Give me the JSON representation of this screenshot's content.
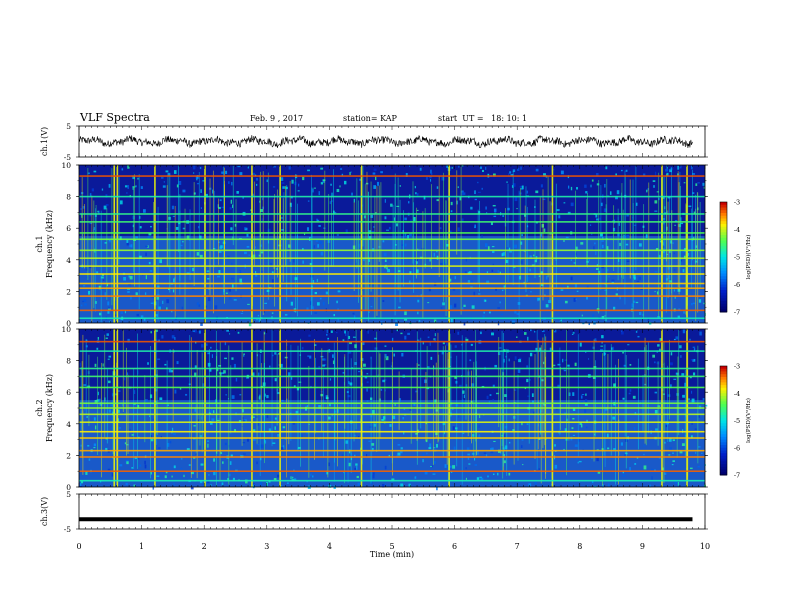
{
  "header": {
    "title": "VLF Spectra",
    "date": "Feb. 9 , 2017",
    "station": "station= KAP",
    "start": "start  UT =   18: 10: 1"
  },
  "chart_data": [
    {
      "type": "line",
      "panel": "ch1_waveform",
      "ylabel": "ch.1(V)",
      "ylim": [
        -5,
        5
      ],
      "yticks": [
        "5",
        "-5"
      ],
      "xlim": [
        0,
        10
      ],
      "color": "#000000",
      "note": "noisy oscillating waveform centered near 0 V, amplitude about ±2 V"
    },
    {
      "type": "heatmap",
      "panel": "ch1_spectrogram",
      "ylabel": "ch.1\nFrequency (kHz)",
      "ylim": [
        0,
        10
      ],
      "yticks": [
        "0",
        "2",
        "4",
        "6",
        "8",
        "10"
      ],
      "xlim": [
        0,
        10
      ],
      "colorbar": {
        "label": "log(PSD)(V²/Hz)",
        "range": [
          -7,
          -3
        ],
        "ticks": [
          "-3",
          "-4",
          "-5",
          "-6",
          "-7"
        ]
      },
      "bands_khz": [
        0.3,
        0.8,
        1.7,
        2.2,
        2.5,
        3.1,
        3.6,
        4.1,
        4.6,
        5.3,
        5.7,
        6.4,
        6.9,
        8.0,
        9.3
      ],
      "vertical_streak_minutes": [
        0.55,
        0.6,
        1.2,
        2.0,
        2.75,
        3.2,
        4.5,
        5.9,
        7.55,
        9.3,
        9.7
      ]
    },
    {
      "type": "heatmap",
      "panel": "ch2_spectrogram",
      "ylabel": "ch.2\nFrequency (kHz)",
      "ylim": [
        0,
        10
      ],
      "yticks": [
        "0",
        "2",
        "4",
        "6",
        "8",
        "10"
      ],
      "xlim": [
        0,
        10
      ],
      "colorbar": {
        "label": "log(PSD)(V²/Hz)",
        "range": [
          -7,
          -3
        ],
        "ticks": [
          "-3",
          "-4",
          "-5",
          "-6",
          "-7"
        ]
      },
      "bands_khz": [
        0.4,
        1.0,
        1.9,
        2.3,
        3.1,
        3.5,
        4.1,
        4.6,
        5.0,
        5.3,
        6.3,
        7.0,
        7.5,
        8.6,
        9.2
      ],
      "vertical_streak_minutes": [
        0.55,
        0.6,
        1.2,
        2.0,
        2.75,
        3.2,
        4.5,
        5.9,
        7.55,
        9.3,
        9.7
      ]
    },
    {
      "type": "line",
      "panel": "ch3_waveform",
      "ylabel": "ch.3(V)",
      "ylim": [
        -5,
        5
      ],
      "yticks": [
        "5",
        "-5"
      ],
      "xlim": [
        0,
        10
      ],
      "x": [
        0,
        9.8
      ],
      "y": [
        -2.2,
        -2.2
      ],
      "color": "#000000"
    }
  ],
  "x_axis": {
    "label": "Time  (min)",
    "ticks": [
      "0",
      "1",
      "2",
      "3",
      "4",
      "5",
      "6",
      "7",
      "8",
      "9",
      "10"
    ]
  },
  "colors": {
    "background": "#ffffff",
    "spectrogram_base": "#0a1a9a",
    "line": "#000000"
  }
}
